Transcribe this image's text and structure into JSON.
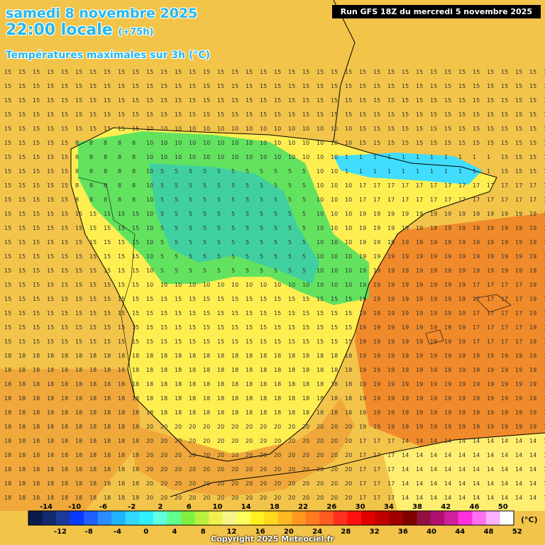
{
  "title": {
    "date": "samedi 8 novembre 2025",
    "time": "22:00 locale",
    "offset": "(+75h)",
    "variable": "Températures maximales sur 3h (°C)"
  },
  "run_info": "Run GFS 18Z du mercredi 5 novembre 2025",
  "copyright": "Copyright 2025 Meteociel.fr",
  "unit": "(°C)",
  "scale": {
    "top_labels": [
      "-14",
      "-10",
      "-6",
      "-2",
      "2",
      "6",
      "10",
      "14",
      "18",
      "22",
      "26",
      "30",
      "34",
      "38",
      "42",
      "46",
      "50"
    ],
    "bottom_labels": [
      "-12",
      "-8",
      "-4",
      "0",
      "4",
      "8",
      "12",
      "16",
      "20",
      "24",
      "28",
      "32",
      "36",
      "40",
      "44",
      "48",
      "52"
    ],
    "colors": [
      "#0a1a4a",
      "#142a6e",
      "#1a3a9c",
      "#0a3aff",
      "#2060ff",
      "#2a8cff",
      "#20b4ff",
      "#30d8ff",
      "#30f0ff",
      "#60ffe0",
      "#60ff90",
      "#80f040",
      "#b8f040",
      "#f0f050",
      "#f4f48a",
      "#ffff60",
      "#fff020",
      "#ffd820",
      "#ffb820",
      "#ff9820",
      "#ff7a20",
      "#ff5a20",
      "#ff3020",
      "#ff1010",
      "#e00000",
      "#c00000",
      "#a00000",
      "#800000",
      "#901040",
      "#b01070",
      "#d020a0",
      "#ff30e0",
      "#ff70f0",
      "#ffb0ff",
      "#ffffff"
    ]
  },
  "map": {
    "region": "Iberian Peninsula",
    "regions": {
      "sea": "#f3c44a",
      "spain_inland": "#ffee50",
      "central_plateau": "#62e25e",
      "cool_core": "#40d0a0",
      "cantabrian": "#40ddff",
      "med_coast": "#f08a2a",
      "south_warm": "#f0a83a"
    },
    "sample_values": {
      "atlantic_north": "15",
      "atlantic_south": "18",
      "mediterranean": "17",
      "andalusia": "20",
      "galicia": "8",
      "meseta": "5",
      "cantabria": "1",
      "pyrenees": "10",
      "levante": "19",
      "africa_coast": "14",
      "baleares": "17"
    }
  }
}
